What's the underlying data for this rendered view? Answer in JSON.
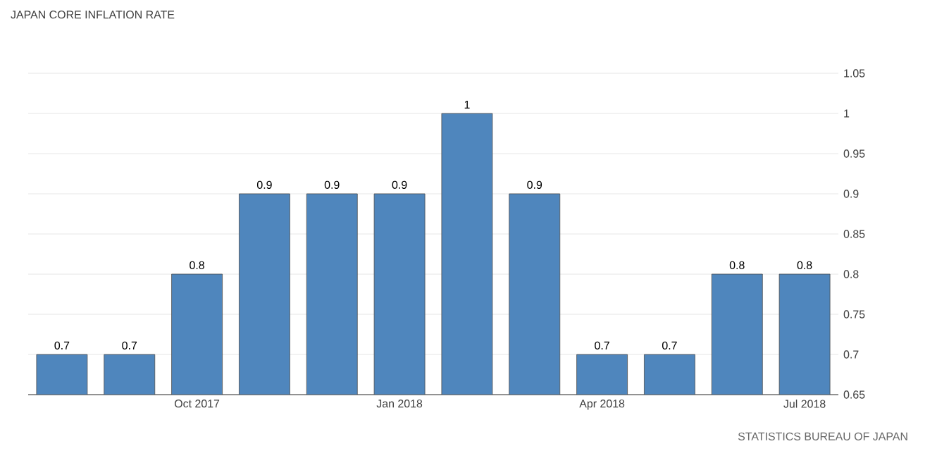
{
  "chart_data": {
    "type": "bar",
    "title": "JAPAN CORE INFLATION RATE",
    "categories": [
      null,
      null,
      "Oct 2017",
      null,
      null,
      "Jan 2018",
      null,
      null,
      "Apr 2018",
      null,
      null,
      "Jul 2018"
    ],
    "values": [
      0.7,
      0.7,
      0.8,
      0.9,
      0.9,
      0.9,
      1,
      0.9,
      0.7,
      0.7,
      0.8,
      0.8
    ],
    "color": "#4f86bd",
    "ylim": [
      0.65,
      1.05
    ],
    "yticks": [
      0.65,
      0.7,
      0.75,
      0.8,
      0.85,
      0.9,
      0.95,
      1,
      1.05
    ],
    "grid": "y",
    "data_labels": true,
    "annotations": [
      "STATISTICS BUREAU OF JAPAN"
    ]
  }
}
